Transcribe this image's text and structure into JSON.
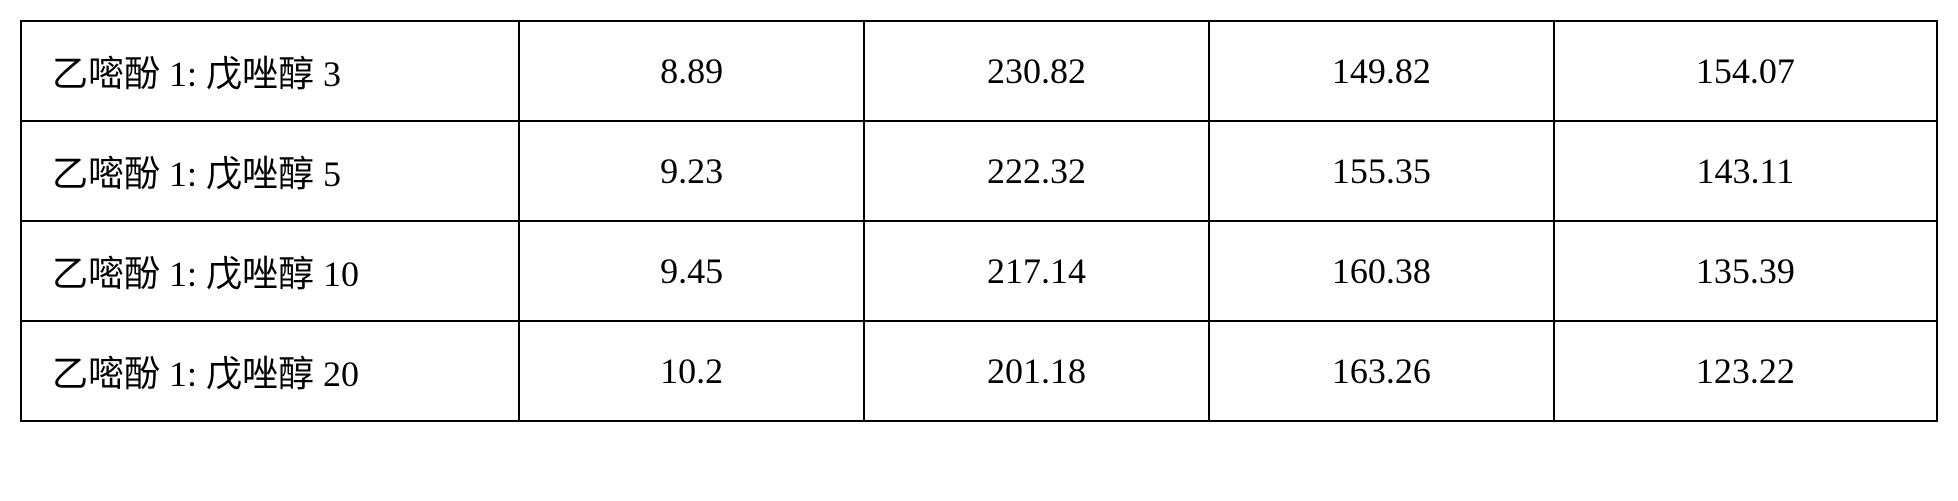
{
  "table": {
    "type": "table",
    "background_color": "#ffffff",
    "border_color": "#000000",
    "border_width": 2,
    "font_family": "SimSun",
    "font_size": 36,
    "text_color": "#000000",
    "columns": [
      {
        "key": "label",
        "align": "left",
        "width_pct": 26
      },
      {
        "key": "v1",
        "align": "center",
        "width_pct": 18
      },
      {
        "key": "v2",
        "align": "center",
        "width_pct": 18
      },
      {
        "key": "v3",
        "align": "center",
        "width_pct": 18
      },
      {
        "key": "v4",
        "align": "center",
        "width_pct": 20
      }
    ],
    "rows": [
      {
        "label": "乙嘧酚 1: 戊唑醇  3",
        "v1": "8.89",
        "v2": "230.82",
        "v3": "149.82",
        "v4": "154.07"
      },
      {
        "label": "乙嘧酚 1: 戊唑醇  5",
        "v1": "9.23",
        "v2": "222.32",
        "v3": "155.35",
        "v4": "143.11"
      },
      {
        "label": "乙嘧酚 1: 戊唑醇 10",
        "v1": "9.45",
        "v2": "217.14",
        "v3": "160.38",
        "v4": "135.39"
      },
      {
        "label": "乙嘧酚 1: 戊唑醇 20",
        "v1": "10.2",
        "v2": "201.18",
        "v3": "163.26",
        "v4": "123.22"
      }
    ]
  }
}
